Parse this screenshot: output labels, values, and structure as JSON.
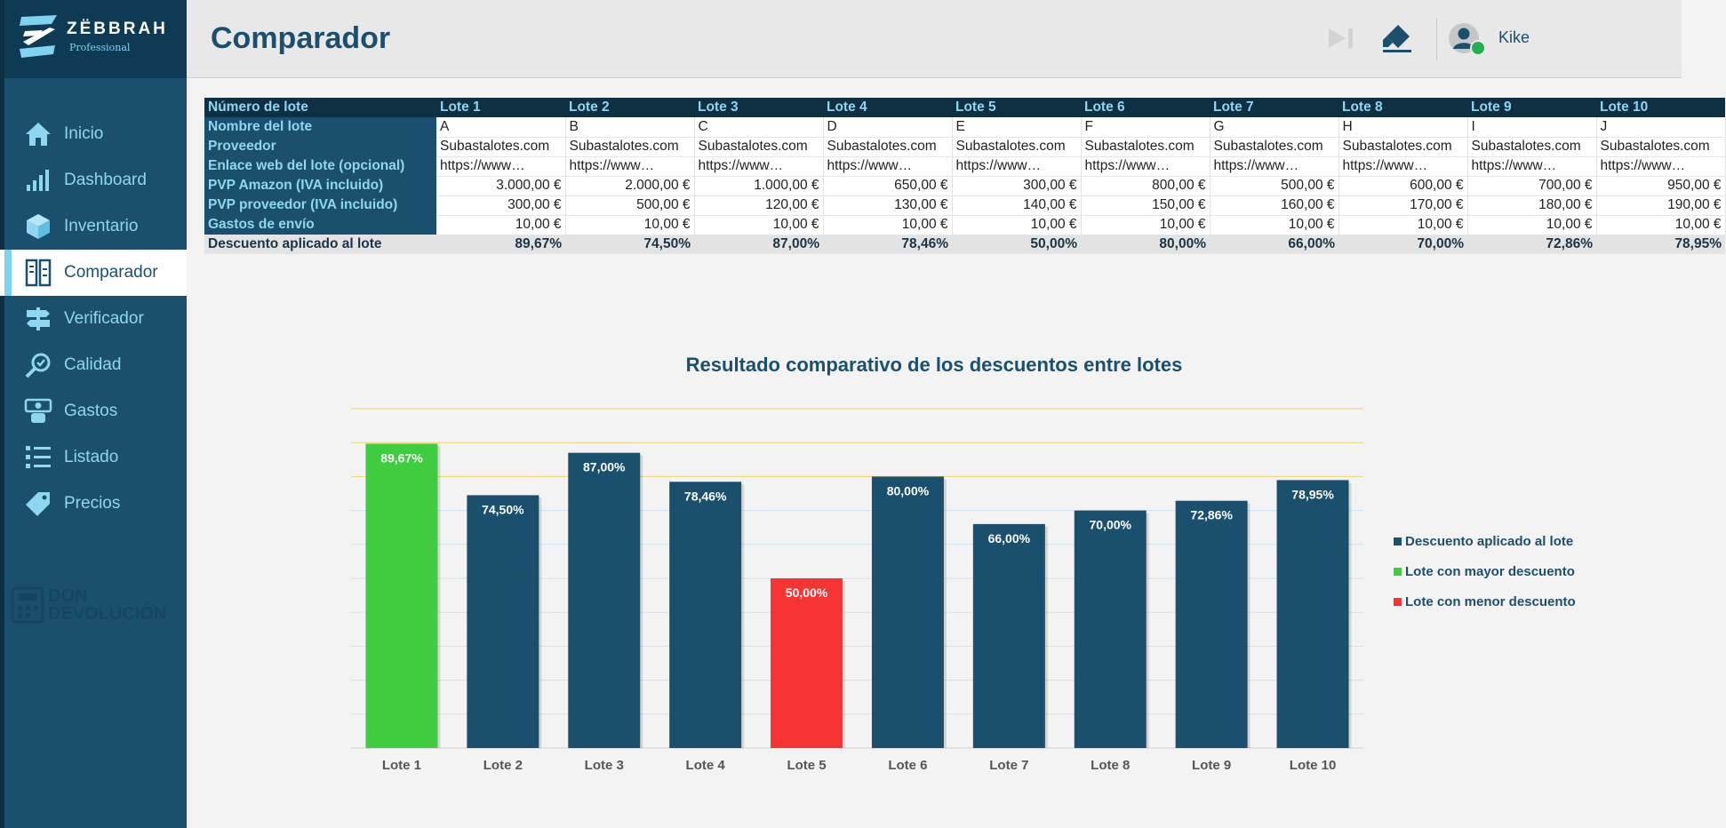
{
  "app": {
    "brand": "ZËBBRAH",
    "edition": "Professional"
  },
  "header": {
    "title": "Comparador",
    "user_name": "Kike"
  },
  "sidebar": {
    "items": [
      {
        "label": "Inicio",
        "icon": "home-icon"
      },
      {
        "label": "Dashboard",
        "icon": "bar-chart-icon"
      },
      {
        "label": "Inventario",
        "icon": "box-icon"
      },
      {
        "label": "Comparador",
        "icon": "compare-icon",
        "active": true
      },
      {
        "label": "Verificador",
        "icon": "signpost-icon"
      },
      {
        "label": "Calidad",
        "icon": "magnifier-check-icon"
      },
      {
        "label": "Gastos",
        "icon": "money-icon"
      },
      {
        "label": "Listado",
        "icon": "list-icon"
      },
      {
        "label": "Precios",
        "icon": "price-tag-icon"
      }
    ],
    "watermark": [
      "DON",
      "DEVOLUCIÓN"
    ]
  },
  "table": {
    "header_label": "Número de lote",
    "lots": [
      "Lote 1",
      "Lote 2",
      "Lote 3",
      "Lote 4",
      "Lote 5",
      "Lote 6",
      "Lote 7",
      "Lote 8",
      "Lote 9",
      "Lote 10"
    ],
    "rows": [
      {
        "label": "Nombre del lote",
        "align": "left",
        "values": [
          "A",
          "B",
          "C",
          "D",
          "E",
          "F",
          "G",
          "H",
          "I",
          "J"
        ]
      },
      {
        "label": "Proveedor",
        "align": "left",
        "values": [
          "Subastalotes.com",
          "Subastalotes.com",
          "Subastalotes.com",
          "Subastalotes.com",
          "Subastalotes.com",
          "Subastalotes.com",
          "Subastalotes.com",
          "Subastalotes.com",
          "Subastalotes.com",
          "Subastalotes.com"
        ]
      },
      {
        "label": "Enlace web del lote (opcional)",
        "align": "left",
        "values": [
          "https://www…",
          "https://www…",
          "https://www…",
          "https://www…",
          "https://www…",
          "https://www…",
          "https://www…",
          "https://www…",
          "https://www…",
          "https://www…"
        ]
      },
      {
        "label": "PVP Amazon (IVA incluido)",
        "align": "right",
        "values": [
          "3.000,00 €",
          "2.000,00 €",
          "1.000,00 €",
          "650,00 €",
          "300,00 €",
          "800,00 €",
          "500,00 €",
          "600,00 €",
          "700,00 €",
          "950,00 €"
        ]
      },
      {
        "label": "PVP proveedor (IVA incluido)",
        "align": "right",
        "values": [
          "300,00 €",
          "500,00 €",
          "120,00 €",
          "130,00 €",
          "140,00 €",
          "150,00 €",
          "160,00 €",
          "170,00 €",
          "180,00 €",
          "190,00 €"
        ]
      },
      {
        "label": "Gastos de envío",
        "align": "right",
        "values": [
          "10,00 €",
          "10,00 €",
          "10,00 €",
          "10,00 €",
          "10,00 €",
          "10,00 €",
          "10,00 €",
          "10,00 €",
          "10,00 €",
          "10,00 €"
        ]
      }
    ],
    "discount_row": {
      "label": "Descuento aplicado al lote",
      "values": [
        "89,67%",
        "74,50%",
        "87,00%",
        "78,46%",
        "50,00%",
        "80,00%",
        "66,00%",
        "70,00%",
        "72,86%",
        "78,95%"
      ]
    }
  },
  "chart_data": {
    "type": "bar",
    "title": "Resultado comparativo de los descuentos entre lotes",
    "categories": [
      "Lote 1",
      "Lote 2",
      "Lote 3",
      "Lote 4",
      "Lote 5",
      "Lote 6",
      "Lote 7",
      "Lote 8",
      "Lote 9",
      "Lote 10"
    ],
    "values": [
      89.67,
      74.5,
      87.0,
      78.46,
      50.0,
      80.0,
      66.0,
      70.0,
      72.86,
      78.95
    ],
    "data_labels": [
      "89,67%",
      "74,50%",
      "87,00%",
      "78,46%",
      "50,00%",
      "80,00%",
      "66,00%",
      "70,00%",
      "72,86%",
      "78,95%"
    ],
    "bar_roles": [
      "max",
      "normal",
      "normal",
      "normal",
      "min",
      "normal",
      "normal",
      "normal",
      "normal",
      "normal"
    ],
    "ylim": [
      0,
      100
    ],
    "grid": true,
    "legend_position": "right",
    "legend": [
      {
        "label": "Descuento aplicado al lote",
        "role": "normal"
      },
      {
        "label": "Lote con mayor descuento",
        "role": "max"
      },
      {
        "label": "Lote con menor descuento",
        "role": "min"
      }
    ],
    "colors": {
      "normal": "#1b4f6e",
      "max": "#3fcd3f",
      "min": "#f63434"
    }
  }
}
